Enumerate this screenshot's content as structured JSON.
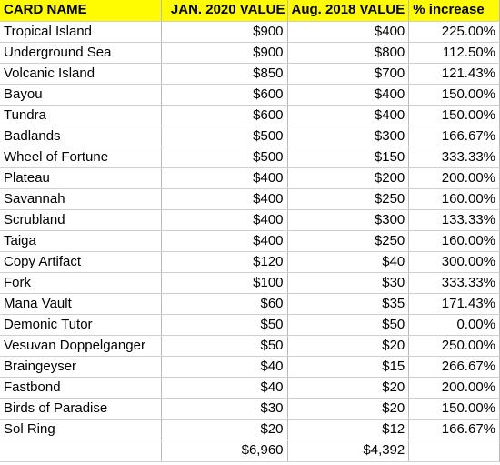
{
  "headers": {
    "card_name": "CARD NAME",
    "jan_2020": "JAN. 2020 VALUE",
    "aug_2018": "Aug. 2018 VALUE",
    "pct_increase": "% increase"
  },
  "rows": [
    {
      "name": "Tropical Island",
      "jan": "$900",
      "aug": "$400",
      "pct": "225.00%"
    },
    {
      "name": "Underground Sea",
      "jan": "$900",
      "aug": "$800",
      "pct": "112.50%"
    },
    {
      "name": "Volcanic Island",
      "jan": "$850",
      "aug": "$700",
      "pct": "121.43%"
    },
    {
      "name": "Bayou",
      "jan": "$600",
      "aug": "$400",
      "pct": "150.00%"
    },
    {
      "name": "Tundra",
      "jan": "$600",
      "aug": "$400",
      "pct": "150.00%"
    },
    {
      "name": "Badlands",
      "jan": "$500",
      "aug": "$300",
      "pct": "166.67%"
    },
    {
      "name": "Wheel of Fortune",
      "jan": "$500",
      "aug": "$150",
      "pct": "333.33%"
    },
    {
      "name": "Plateau",
      "jan": "$400",
      "aug": "$200",
      "pct": "200.00%"
    },
    {
      "name": "Savannah",
      "jan": "$400",
      "aug": "$250",
      "pct": "160.00%"
    },
    {
      "name": "Scrubland",
      "jan": "$400",
      "aug": "$300",
      "pct": "133.33%"
    },
    {
      "name": "Taiga",
      "jan": "$400",
      "aug": "$250",
      "pct": "160.00%"
    },
    {
      "name": "Copy Artifact",
      "jan": "$120",
      "aug": "$40",
      "pct": "300.00%"
    },
    {
      "name": "Fork",
      "jan": "$100",
      "aug": "$30",
      "pct": "333.33%"
    },
    {
      "name": "Mana Vault",
      "jan": "$60",
      "aug": "$35",
      "pct": "171.43%"
    },
    {
      "name": "Demonic Tutor",
      "jan": "$50",
      "aug": "$50",
      "pct": "0.00%"
    },
    {
      "name": "Vesuvan Doppelganger",
      "jan": "$50",
      "aug": "$20",
      "pct": "250.00%"
    },
    {
      "name": "Braingeyser",
      "jan": "$40",
      "aug": "$15",
      "pct": "266.67%"
    },
    {
      "name": "Fastbond",
      "jan": "$40",
      "aug": "$20",
      "pct": "200.00%"
    },
    {
      "name": "Birds of Paradise",
      "jan": "$30",
      "aug": "$20",
      "pct": "150.00%"
    },
    {
      "name": "Sol Ring",
      "jan": "$20",
      "aug": "$12",
      "pct": "166.67%"
    }
  ],
  "totals": {
    "name": "",
    "jan": "$6,960",
    "aug": "$4,392",
    "pct": ""
  },
  "colors": {
    "header_background": "#fffb00"
  }
}
